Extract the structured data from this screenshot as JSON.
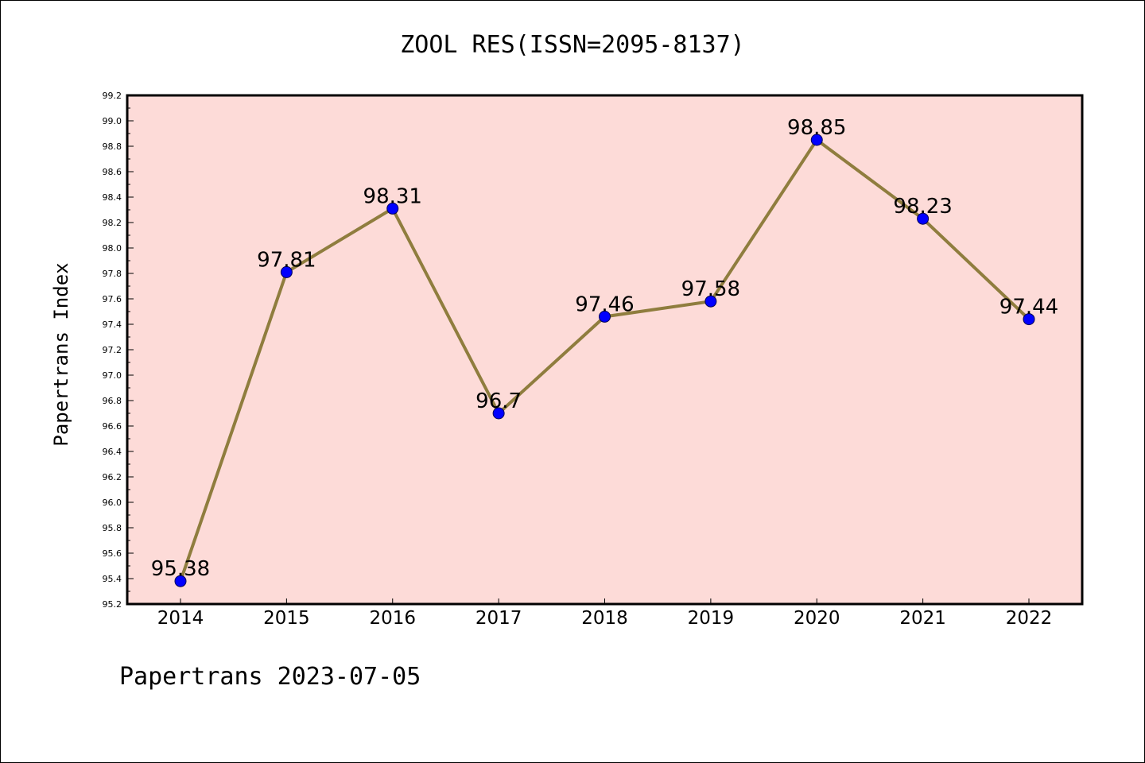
{
  "chart_data": {
    "type": "line",
    "title": "ZOOL RES(ISSN=2095-8137)",
    "xlabel": "",
    "ylabel": "Papertrans Index",
    "categories": [
      "2014",
      "2015",
      "2016",
      "2017",
      "2018",
      "2019",
      "2020",
      "2021",
      "2022"
    ],
    "series": [
      {
        "values": [
          95.38,
          97.81,
          98.31,
          96.7,
          97.46,
          97.58,
          98.85,
          98.23,
          97.44
        ],
        "data_labels": [
          "95.38",
          "97.81",
          "98.31",
          "96.7",
          "97.46",
          "97.58",
          "98.85",
          "98.23",
          "97.44"
        ]
      }
    ],
    "ylim": [
      95.2,
      99.2
    ],
    "yticks": [
      "95.2",
      "95.4",
      "95.6",
      "95.8",
      "96.0",
      "96.2",
      "96.4",
      "96.6",
      "96.8",
      "97.0",
      "97.2",
      "97.4",
      "97.6",
      "97.8",
      "98.0",
      "98.2",
      "98.4",
      "98.6",
      "98.8",
      "99.0",
      "99.2"
    ],
    "grid": false,
    "colors": {
      "plot_background": "#fddbd8",
      "line": "#8f7d3e",
      "marker": "#0000ff"
    }
  },
  "footer": "Papertrans 2023-07-05"
}
